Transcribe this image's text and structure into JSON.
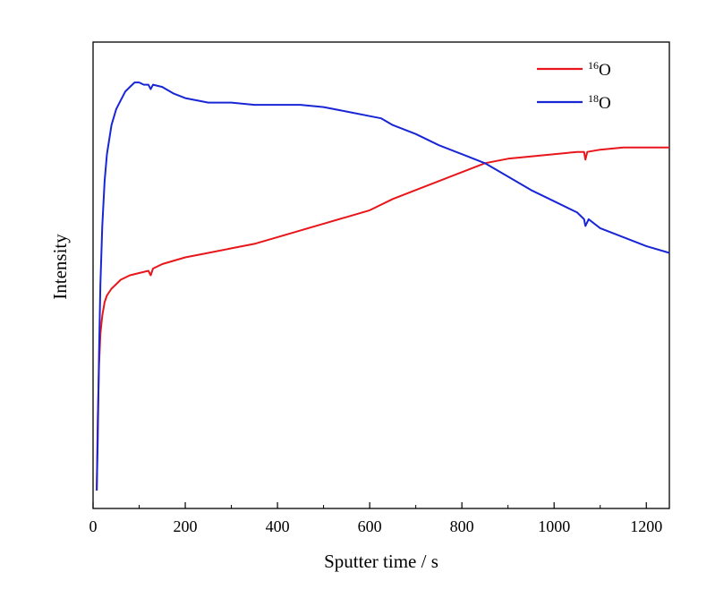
{
  "chart_data": {
    "type": "line",
    "title": "",
    "xlabel": "Sputter time / s",
    "ylabel": "Intensity",
    "xlim": [
      0,
      1250
    ],
    "ylim": [
      0,
      1.04
    ],
    "x_ticks": [
      0,
      200,
      400,
      600,
      800,
      1000,
      1200
    ],
    "x_tick_labels": [
      "0",
      "200",
      "400",
      "600",
      "800",
      "1000",
      "1200"
    ],
    "y_ticks_labeled": false,
    "grid": false,
    "legend_position": "top-right",
    "series": [
      {
        "name_sup": "16",
        "name_base": "O",
        "color": "#e8161a",
        "points": [
          [
            8,
            0.04
          ],
          [
            10,
            0.2
          ],
          [
            13,
            0.32
          ],
          [
            16,
            0.39
          ],
          [
            20,
            0.43
          ],
          [
            25,
            0.46
          ],
          [
            30,
            0.475
          ],
          [
            40,
            0.49
          ],
          [
            50,
            0.5
          ],
          [
            60,
            0.51
          ],
          [
            80,
            0.52
          ],
          [
            100,
            0.525
          ],
          [
            120,
            0.53
          ],
          [
            125,
            0.52
          ],
          [
            130,
            0.535
          ],
          [
            150,
            0.545
          ],
          [
            200,
            0.56
          ],
          [
            250,
            0.57
          ],
          [
            300,
            0.58
          ],
          [
            350,
            0.59
          ],
          [
            400,
            0.605
          ],
          [
            450,
            0.62
          ],
          [
            500,
            0.635
          ],
          [
            550,
            0.65
          ],
          [
            600,
            0.665
          ],
          [
            650,
            0.69
          ],
          [
            700,
            0.71
          ],
          [
            750,
            0.73
          ],
          [
            800,
            0.75
          ],
          [
            850,
            0.77
          ],
          [
            900,
            0.78
          ],
          [
            950,
            0.785
          ],
          [
            1000,
            0.79
          ],
          [
            1050,
            0.795
          ],
          [
            1065,
            0.795
          ],
          [
            1068,
            0.778
          ],
          [
            1072,
            0.795
          ],
          [
            1100,
            0.8
          ],
          [
            1150,
            0.805
          ],
          [
            1200,
            0.805
          ],
          [
            1250,
            0.805
          ]
        ]
      },
      {
        "name_sup": "18",
        "name_base": "O",
        "color": "#1826d6",
        "points": [
          [
            8,
            0.04
          ],
          [
            10,
            0.15
          ],
          [
            13,
            0.35
          ],
          [
            16,
            0.5
          ],
          [
            20,
            0.63
          ],
          [
            25,
            0.73
          ],
          [
            30,
            0.79
          ],
          [
            40,
            0.855
          ],
          [
            50,
            0.89
          ],
          [
            60,
            0.91
          ],
          [
            70,
            0.93
          ],
          [
            80,
            0.94
          ],
          [
            90,
            0.95
          ],
          [
            100,
            0.95
          ],
          [
            110,
            0.945
          ],
          [
            120,
            0.945
          ],
          [
            125,
            0.935
          ],
          [
            130,
            0.945
          ],
          [
            150,
            0.94
          ],
          [
            175,
            0.925
          ],
          [
            200,
            0.915
          ],
          [
            250,
            0.905
          ],
          [
            300,
            0.905
          ],
          [
            350,
            0.9
          ],
          [
            400,
            0.9
          ],
          [
            450,
            0.9
          ],
          [
            500,
            0.895
          ],
          [
            550,
            0.885
          ],
          [
            600,
            0.875
          ],
          [
            625,
            0.87
          ],
          [
            650,
            0.855
          ],
          [
            700,
            0.835
          ],
          [
            750,
            0.81
          ],
          [
            800,
            0.79
          ],
          [
            850,
            0.77
          ],
          [
            900,
            0.74
          ],
          [
            950,
            0.71
          ],
          [
            1000,
            0.685
          ],
          [
            1050,
            0.66
          ],
          [
            1065,
            0.645
          ],
          [
            1068,
            0.63
          ],
          [
            1075,
            0.645
          ],
          [
            1100,
            0.625
          ],
          [
            1150,
            0.605
          ],
          [
            1200,
            0.585
          ],
          [
            1250,
            0.57
          ]
        ]
      }
    ]
  }
}
